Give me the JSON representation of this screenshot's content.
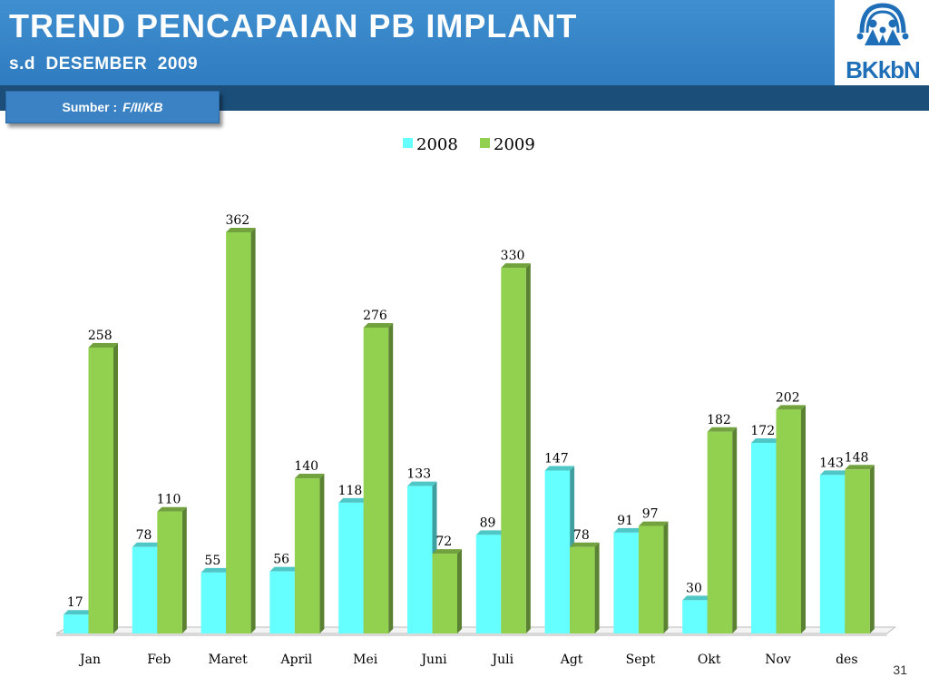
{
  "header": {
    "title": "TREND PENCAPAIAN PB IMPLANT",
    "subtitle": "s.d  DESEMBER  2009"
  },
  "logo": {
    "text": "BKkbN",
    "icon": "family-figures-logo"
  },
  "source": {
    "label": "Sumber :",
    "value": "F/II/KB"
  },
  "page_number": "31",
  "colors": {
    "header_bg": "#3a88cc",
    "band_bg": "#1c4e7a",
    "series_2008": "#66ffff",
    "series_2009": "#92d050"
  },
  "chart_data": {
    "type": "bar",
    "style": "3d-clustered-column",
    "categories": [
      "Jan",
      "Feb",
      "Maret",
      "April",
      "Mei",
      "Juni",
      "Juli",
      "Agt",
      "Sept",
      "Okt",
      "Nov",
      "des"
    ],
    "series": [
      {
        "name": "2008",
        "color": "#66ffff",
        "values": [
          17,
          78,
          55,
          56,
          118,
          133,
          89,
          147,
          91,
          30,
          172,
          143
        ]
      },
      {
        "name": "2009",
        "color": "#92d050",
        "values": [
          258,
          110,
          362,
          140,
          276,
          72,
          330,
          78,
          97,
          182,
          202,
          148
        ]
      }
    ],
    "legend_position": "top",
    "grid": false,
    "ylim": [
      0,
      362
    ]
  }
}
